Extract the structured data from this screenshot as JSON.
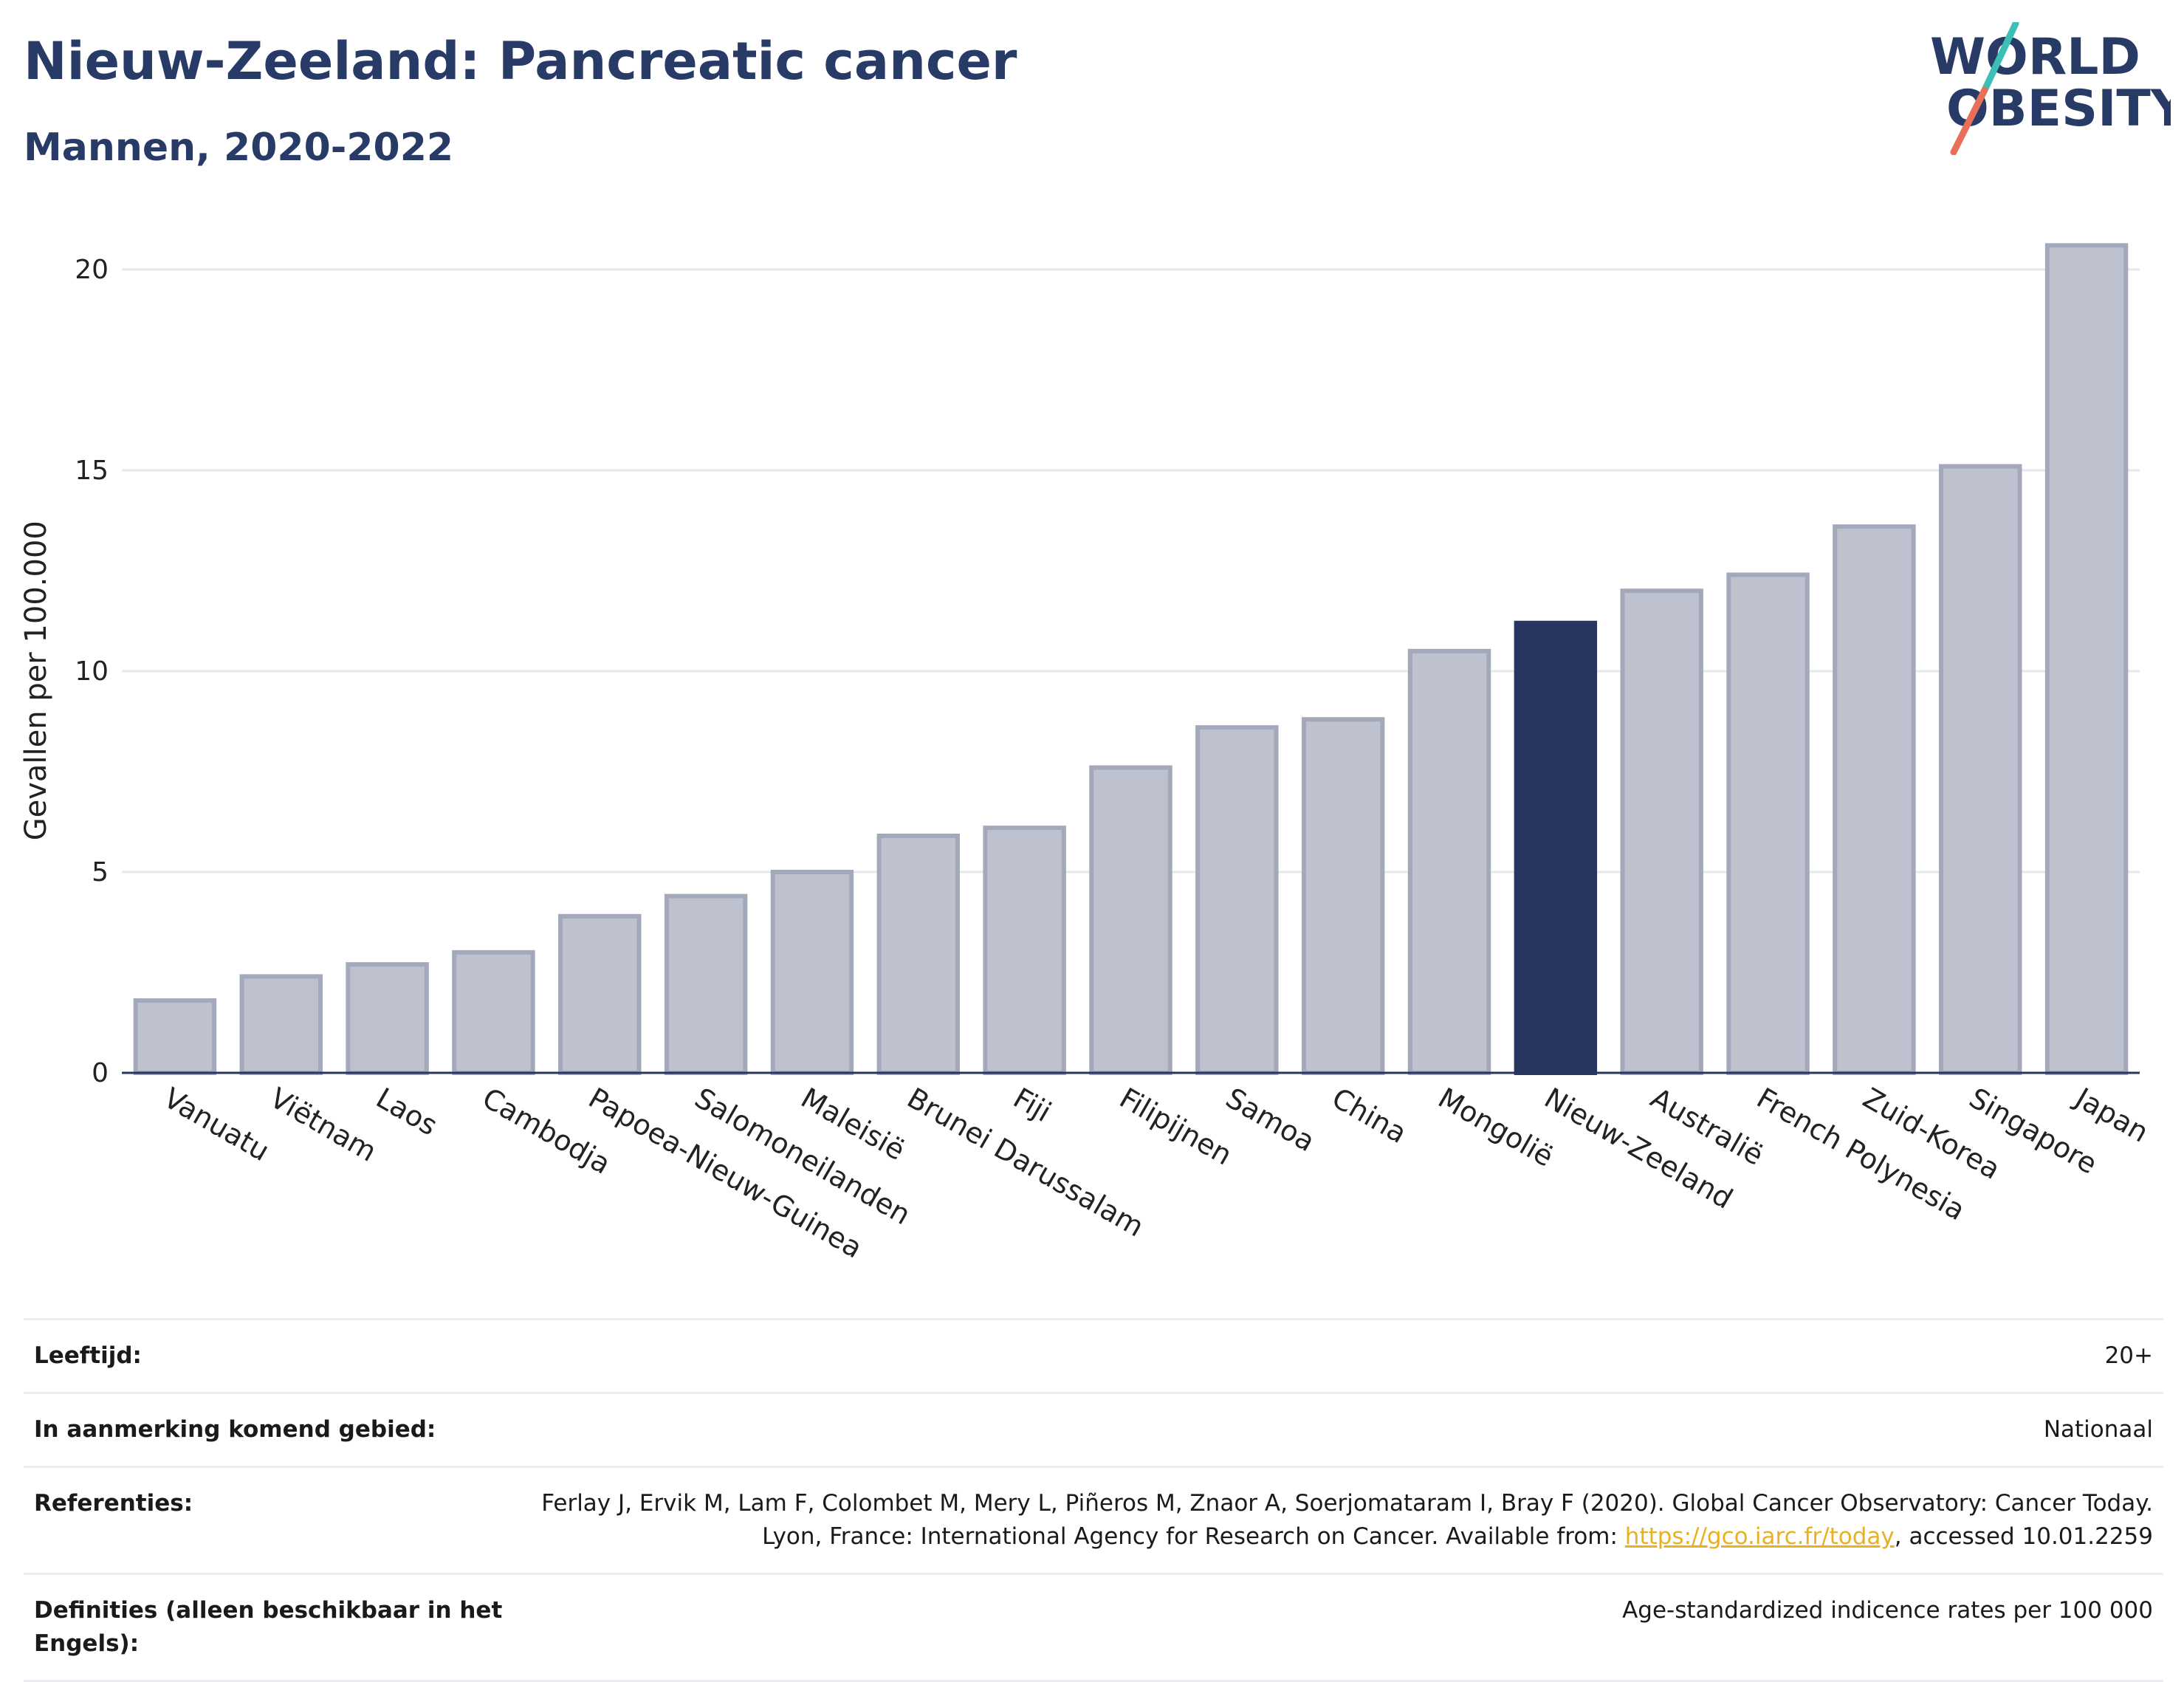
{
  "header": {
    "title": "Nieuw-Zeeland: Pancreatic cancer",
    "subtitle": "Mannen, 2020-2022"
  },
  "logo": {
    "line1": "WORLD",
    "line2": "OBESITY",
    "colors": {
      "text": "#283a66",
      "slash_top": "#3cbfb5",
      "slash_bottom": "#e8705a"
    }
  },
  "chart_data": {
    "type": "bar",
    "ylabel": "Gevallen per 100.000",
    "xlabel": "",
    "ylim": [
      0,
      21
    ],
    "yticks": [
      0,
      5,
      10,
      15,
      20
    ],
    "grid": true,
    "highlight": "Nieuw-Zeeland",
    "colors": {
      "default_fill": "#bec2cf",
      "default_stroke": "#a3a8bb",
      "highlight_fill": "#283560",
      "axis": "#283560",
      "grid": "#e6e8ee"
    },
    "categories": [
      "Vanuatu",
      "Viëtnam",
      "Laos",
      "Cambodja",
      "Papoea-Nieuw-Guinea",
      "Salomoneilanden",
      "Maleisië",
      "Brunei Darussalam",
      "Fiji",
      "Filipijnen",
      "Samoa",
      "China",
      "Mongolië",
      "Nieuw-Zeeland",
      "Australië",
      "French Polynesia",
      "Zuid-Korea",
      "Singapore",
      "Japan"
    ],
    "values": [
      1.8,
      2.4,
      2.7,
      3.0,
      3.9,
      4.4,
      5.0,
      5.9,
      6.1,
      7.6,
      8.6,
      8.8,
      10.5,
      11.2,
      12.0,
      12.4,
      13.6,
      15.1,
      20.6
    ]
  },
  "info": {
    "age_label": "Leeftijd:",
    "age_value": "20+",
    "area_label": "In aanmerking komend gebied:",
    "area_value": "Nationaal",
    "ref_label": "Referenties:",
    "ref_text_1": "Ferlay J, Ervik M, Lam F, Colombet M, Mery L, Piñeros M, Znaor A, Soerjomataram I, Bray F (2020). Global Cancer Observatory: Cancer Today. Lyon, France: International Agency for Research on Cancer. Available from: ",
    "ref_link": "https://gco.iarc.fr/today",
    "ref_text_2": ", accessed 10.01.2259",
    "def_label": "Definities (alleen beschikbaar in het Engels):",
    "def_value": "Age-standardized indicence rates per 100 000"
  }
}
